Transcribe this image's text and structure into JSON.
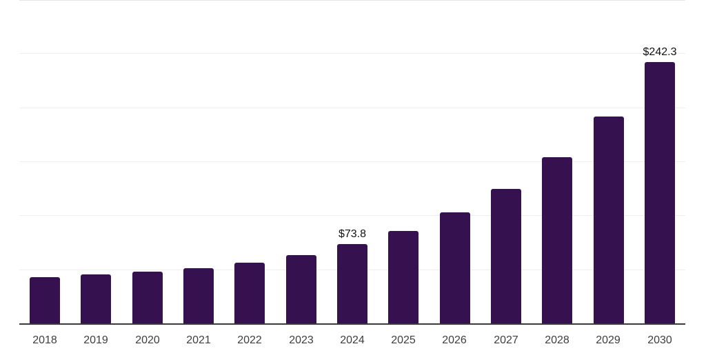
{
  "chart_data": {
    "type": "bar",
    "title": "",
    "xlabel": "",
    "ylabel": "",
    "categories": [
      "2018",
      "2019",
      "2020",
      "2021",
      "2022",
      "2023",
      "2024",
      "2025",
      "2026",
      "2027",
      "2028",
      "2029",
      "2030"
    ],
    "values": [
      43.6,
      45.9,
      48.3,
      51.5,
      56.5,
      64.1,
      73.8,
      86.1,
      103.6,
      125.2,
      154.5,
      192.0,
      242.3
    ],
    "data_labels": [
      {
        "category": "2024",
        "text": "$73.8"
      },
      {
        "category": "2030",
        "text": "$242.3"
      }
    ],
    "ylim": [
      0,
      300
    ],
    "gridline_step": 50,
    "grid": "horizontal-only",
    "legend": "none",
    "y_axis_labels_visible": false,
    "colors": {
      "bar": "#36114F",
      "axis_line": "#3a3a3a",
      "gridline": "#eeeeee",
      "top_gridline": "#e4e4e4",
      "tick_label": "#3d3d3d",
      "data_label": "#111111",
      "background": "#ffffff"
    }
  }
}
